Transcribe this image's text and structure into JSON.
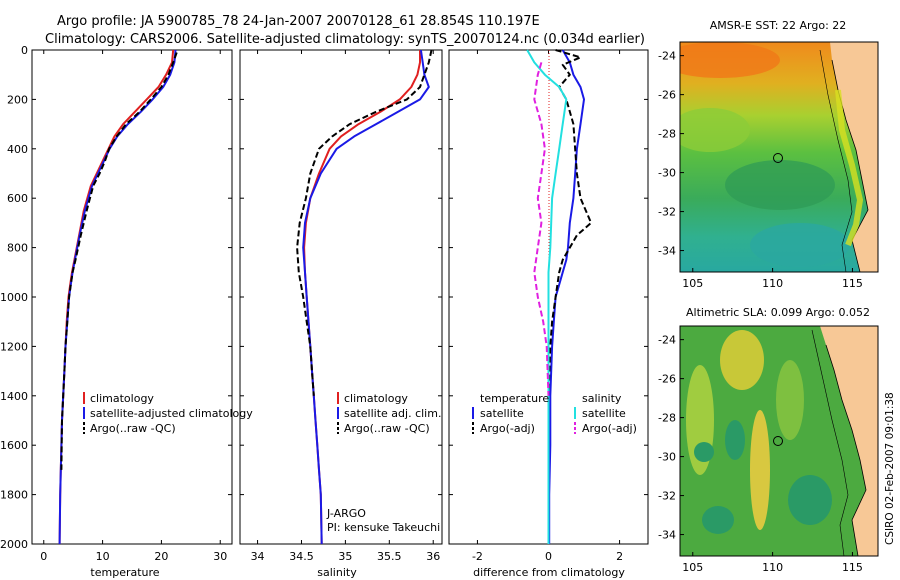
{
  "header": {
    "line1": "Argo profile: JA 5900785_78 24-Jan-2007 20070128_61 28.854S 110.197E",
    "line2": "Climatology: CARS2006. Satellite-adjusted climatology: synTS_20070124.nc (0.034d earlier)"
  },
  "side_text": "CSIRO 02-Feb-2007 09:01:38",
  "colors": {
    "climatology": "#e02020",
    "satellite": "#1a1ae6",
    "argo": "#000000",
    "sal_satellite": "#22e0e0",
    "sal_argo": "#e020e0",
    "land": "#f7c896"
  },
  "chart_data": [
    {
      "type": "line",
      "id": "temperature",
      "xlabel": "temperature",
      "xlim": [
        -2,
        32
      ],
      "ylim": [
        2000,
        0
      ],
      "xticks": [
        "0",
        "10",
        "20",
        "30"
      ],
      "yticks": [
        "0",
        "200",
        "400",
        "600",
        "800",
        "1000",
        "1200",
        "1400",
        "1600",
        "1800",
        "2000"
      ],
      "legend": [
        "climatology",
        "satellite-adjusted climatology",
        "Argo(..raw -QC)"
      ],
      "series": [
        {
          "name": "climatology",
          "style": "solid",
          "x": [
            22.0,
            21.8,
            20.8,
            19.5,
            17.5,
            15.5,
            13.5,
            12.0,
            11.0,
            10.0,
            9.0,
            8.0,
            6.8,
            6.0,
            5.2,
            4.8,
            4.5,
            4.2,
            3.9,
            3.7,
            3.5,
            3.3,
            3.1,
            3.0,
            2.9,
            2.8,
            2.7
          ],
          "y": [
            0,
            50,
            100,
            150,
            200,
            250,
            300,
            350,
            400,
            450,
            500,
            550,
            650,
            750,
            850,
            900,
            950,
            1000,
            1100,
            1200,
            1300,
            1400,
            1500,
            1600,
            1700,
            1800,
            2000
          ]
        },
        {
          "name": "satellite-adjusted climatology",
          "style": "solid",
          "x": [
            22.4,
            22.2,
            21.5,
            20.3,
            18.5,
            16.5,
            14.3,
            12.5,
            11.2,
            10.2,
            9.2,
            8.2,
            7.0,
            6.1,
            5.3,
            4.9,
            4.6,
            4.3,
            4.0,
            3.7,
            3.5,
            3.3,
            3.1,
            3.0,
            2.9,
            2.8,
            2.7
          ],
          "y": [
            0,
            50,
            100,
            150,
            200,
            250,
            300,
            350,
            400,
            450,
            500,
            550,
            650,
            750,
            850,
            900,
            950,
            1000,
            1100,
            1200,
            1300,
            1400,
            1500,
            1600,
            1700,
            1800,
            2000
          ]
        },
        {
          "name": "Argo(..raw -QC)",
          "style": "dashed",
          "x": [
            22.6,
            22.0,
            21.2,
            20.0,
            18.2,
            16.3,
            14.0,
            12.4,
            11.1,
            10.4,
            9.5,
            8.4,
            7.3,
            6.3,
            5.4,
            4.9,
            4.6,
            4.3,
            4.0,
            3.7,
            3.5,
            3.3,
            3.1,
            3.0
          ],
          "y": [
            10,
            50,
            100,
            150,
            200,
            250,
            300,
            350,
            400,
            450,
            500,
            550,
            650,
            750,
            850,
            900,
            950,
            1000,
            1100,
            1200,
            1300,
            1400,
            1500,
            1700
          ]
        }
      ]
    },
    {
      "type": "line",
      "id": "salinity",
      "xlabel": "salinity",
      "xlim": [
        33.8,
        36.1
      ],
      "ylim": [
        2000,
        0
      ],
      "xticks": [
        "34",
        "34.5",
        "35",
        "35.5",
        "36"
      ],
      "legend": [
        "climatology",
        "satellite adj. clim.",
        "Argo(..raw -QC)"
      ],
      "annotation": [
        "J-ARGO",
        "PI: kensuke Takeuchi"
      ],
      "series": [
        {
          "name": "climatology",
          "style": "solid",
          "x": [
            35.85,
            35.85,
            35.82,
            35.75,
            35.62,
            35.4,
            35.15,
            34.95,
            34.82,
            34.7,
            34.6,
            34.55,
            34.53,
            34.54,
            34.56,
            34.58,
            34.6,
            34.62,
            34.64,
            34.66,
            34.68,
            34.7,
            34.72,
            34.73
          ],
          "y": [
            0,
            50,
            100,
            150,
            200,
            250,
            300,
            350,
            400,
            500,
            600,
            700,
            800,
            900,
            1000,
            1100,
            1200,
            1300,
            1400,
            1500,
            1600,
            1700,
            1800,
            2000
          ]
        },
        {
          "name": "satellite adj. clim.",
          "style": "solid",
          "x": [
            35.86,
            35.88,
            35.9,
            35.95,
            35.85,
            35.6,
            35.35,
            35.1,
            34.9,
            34.72,
            34.6,
            34.54,
            34.52,
            34.54,
            34.56,
            34.58,
            34.6,
            34.62,
            34.64,
            34.66,
            34.68,
            34.7,
            34.72,
            34.73
          ],
          "y": [
            0,
            50,
            100,
            150,
            200,
            250,
            300,
            350,
            400,
            500,
            600,
            700,
            800,
            900,
            1000,
            1100,
            1200,
            1300,
            1400,
            1500,
            1600,
            1700,
            1800,
            2000
          ]
        },
        {
          "name": "Argo(..raw -QC)",
          "style": "dashed",
          "x": [
            35.98,
            35.95,
            35.9,
            35.85,
            35.7,
            35.35,
            35.05,
            34.85,
            34.7,
            34.6,
            34.55,
            34.48,
            34.45,
            34.47,
            34.52,
            34.56,
            34.6,
            34.62,
            34.64
          ],
          "y": [
            0,
            50,
            100,
            150,
            200,
            250,
            300,
            350,
            400,
            500,
            600,
            700,
            800,
            900,
            1000,
            1100,
            1200,
            1300,
            1400
          ]
        }
      ]
    },
    {
      "type": "line",
      "id": "difference",
      "xlabel": "difference from climatology",
      "xlim": [
        -2.8,
        2.8
      ],
      "ylim": [
        2000,
        0
      ],
      "xticks": [
        "-2",
        "0",
        "2"
      ],
      "legend_temperature": [
        "temperature",
        "satellite",
        "Argo(-adj)"
      ],
      "legend_salinity": [
        "salinity",
        "satellite",
        "Argo(-adj)"
      ],
      "series": [
        {
          "name": "temperature satellite",
          "style": "solid",
          "x": [
            0.4,
            0.6,
            0.7,
            0.9,
            1.0,
            0.9,
            0.8,
            0.75,
            0.7,
            0.6,
            0.55,
            0.5,
            0.4,
            0.3,
            0.2,
            0.15,
            0.1,
            0.05,
            0.05,
            0.02,
            0.02
          ],
          "y": [
            0,
            50,
            100,
            150,
            200,
            300,
            400,
            500,
            600,
            700,
            800,
            850,
            900,
            950,
            1000,
            1100,
            1200,
            1400,
            1600,
            1800,
            2000
          ]
        },
        {
          "name": "temperature Argo(-adj)",
          "style": "dashed",
          "x": [
            0.2,
            0.9,
            0.4,
            0.6,
            0.3,
            0.5,
            0.7,
            0.8,
            0.9,
            1.2,
            0.8,
            0.6,
            0.4,
            0.3,
            0.2,
            0.1,
            0.05,
            0.0,
            0.0
          ],
          "y": [
            0,
            30,
            60,
            100,
            150,
            200,
            300,
            500,
            600,
            700,
            750,
            800,
            850,
            900,
            1000,
            1100,
            1200,
            1400,
            1600
          ]
        },
        {
          "name": "salinity satellite",
          "style": "solid",
          "x": [
            -0.6,
            -0.4,
            -0.1,
            0.3,
            0.5,
            0.4,
            0.3,
            0.2,
            0.1,
            0.05,
            0.0,
            0.0,
            0.0,
            0.0,
            0.0
          ],
          "y": [
            0,
            50,
            100,
            150,
            200,
            300,
            400,
            500,
            600,
            800,
            900,
            1000,
            1400,
            1800,
            2000
          ]
        },
        {
          "name": "salinity Argo(-adj)",
          "style": "dashed",
          "x": [
            -0.2,
            -0.3,
            -0.4,
            -0.2,
            -0.1,
            -0.2,
            -0.3,
            -0.2,
            -0.3,
            -0.4,
            -0.3,
            -0.15,
            -0.05,
            0.0
          ],
          "y": [
            50,
            100,
            200,
            300,
            400,
            500,
            600,
            700,
            800,
            900,
            1000,
            1100,
            1200,
            1400
          ]
        }
      ]
    },
    {
      "type": "heatmap",
      "id": "sst_map",
      "title": "AMSR-E SST: 22 Argo: 22",
      "xticks": [
        "105",
        "110",
        "115"
      ],
      "yticks": [
        "-24",
        "-26",
        "-28",
        "-30",
        "-32",
        "-34"
      ],
      "argo_position": {
        "lon": 110.197,
        "lat": -28.854
      }
    },
    {
      "type": "heatmap",
      "id": "sla_map",
      "title": "Altimetric SLA: 0.099 Argo: 0.052",
      "xticks": [
        "105",
        "110",
        "115"
      ],
      "yticks": [
        "-24",
        "-26",
        "-28",
        "-30",
        "-32",
        "-34"
      ],
      "argo_position": {
        "lon": 110.197,
        "lat": -28.854
      }
    }
  ]
}
